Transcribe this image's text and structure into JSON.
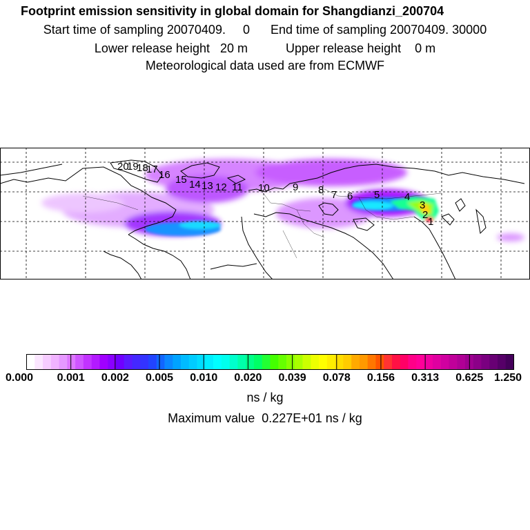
{
  "header": {
    "title": "Footprint emission sensitivity in global domain for Shangdianzi_200704",
    "sampling_line": "Start time of sampling 20070409.     0      End time of sampling 20070409. 30000",
    "height_line": "Lower release height   20 m           Upper release height    0 m",
    "met_line": "Meteorological data used are from ECMWF"
  },
  "map": {
    "trajectory_labels": [
      "1",
      "2",
      "3",
      "4",
      "5",
      "6",
      "7",
      "8",
      "9",
      "10",
      "11",
      "12",
      "13",
      "14",
      "15",
      "16",
      "17",
      "18",
      "19",
      "20"
    ]
  },
  "colorbar": {
    "tick_labels": [
      "0.000",
      "0.001",
      "0.002",
      "0.005",
      "0.010",
      "0.020",
      "0.039",
      "0.078",
      "0.156",
      "0.313",
      "0.625",
      "1.250"
    ],
    "colors": [
      "#ffffff",
      "#fbe6ff",
      "#f6ccff",
      "#f0b3ff",
      "#e699ff",
      "#dd77ff",
      "#cf55ff",
      "#c233ff",
      "#b31aff",
      "#a000ff",
      "#8a00ff",
      "#7000ff",
      "#5a1aff",
      "#4428ff",
      "#3333ff",
      "#2244ff",
      "#1166ff",
      "#0a88ff",
      "#00a3ff",
      "#00bbff",
      "#00ccff",
      "#00ddff",
      "#00eeff",
      "#00ffff",
      "#00ffee",
      "#00ffcc",
      "#00ffaa",
      "#00ff88",
      "#00ff66",
      "#22ff33",
      "#44ff00",
      "#66ff00",
      "#88ff00",
      "#aaff00",
      "#ccff00",
      "#eeff00",
      "#ffff00",
      "#ffee00",
      "#ffdd00",
      "#ffcc00",
      "#ffaa00",
      "#ff9900",
      "#ff7700",
      "#ff5500",
      "#ff3333",
      "#ff1144",
      "#ff0066",
      "#ff0088",
      "#ff0099",
      "#f000a0",
      "#e000a0",
      "#d000a0",
      "#c0009a",
      "#b00096",
      "#9e0090",
      "#8c0088",
      "#7a0080",
      "#680074",
      "#560068",
      "#44005a"
    ],
    "units": "ns / kg"
  },
  "max_value_text": "Maximum value  0.227E+01 ns / kg"
}
